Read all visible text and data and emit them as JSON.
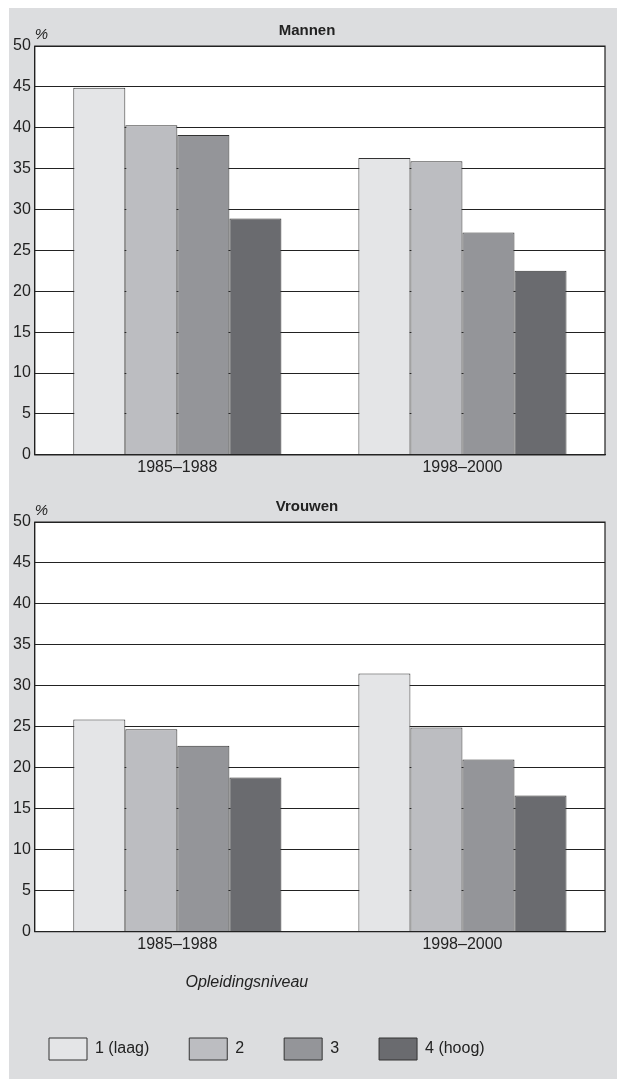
{
  "chart_data": [
    {
      "type": "bar",
      "title": "Mannen",
      "ylabel": "%",
      "categories": [
        "1985–1988",
        "1998–2000"
      ],
      "ylim": [
        0,
        50
      ],
      "yticks": [
        0,
        5,
        10,
        15,
        20,
        25,
        30,
        35,
        40,
        45,
        50
      ],
      "grid": "y",
      "legend": false,
      "series": [
        {
          "color": "#e4e5e7",
          "values": [
            44.9,
            36.3
          ]
        },
        {
          "color": "#bcbdc1",
          "values": [
            40.3,
            35.9
          ]
        },
        {
          "color": "#949599",
          "values": [
            39.1,
            27.2
          ]
        },
        {
          "color": "#6a6b6f",
          "values": [
            28.9,
            22.5
          ]
        }
      ]
    },
    {
      "type": "bar",
      "title": "Vrouwen",
      "ylabel": "%",
      "categories": [
        "1985–1988",
        "1998–2000"
      ],
      "ylim": [
        0,
        50
      ],
      "yticks": [
        0,
        5,
        10,
        15,
        20,
        25,
        30,
        35,
        40,
        45,
        50
      ],
      "grid": "y",
      "legend": "bottom",
      "legend_title": "Opleidingsniveau",
      "series": [
        {
          "name": "1 (laag)",
          "color": "#e4e5e7",
          "values": [
            25.9,
            31.5
          ]
        },
        {
          "name": "2",
          "color": "#bcbdc1",
          "values": [
            24.7,
            24.9
          ]
        },
        {
          "name": "3",
          "color": "#949599",
          "values": [
            22.7,
            21.0
          ]
        },
        {
          "name": "4 (hoog)",
          "color": "#6a6b6f",
          "values": [
            18.8,
            16.6
          ]
        }
      ]
    }
  ]
}
